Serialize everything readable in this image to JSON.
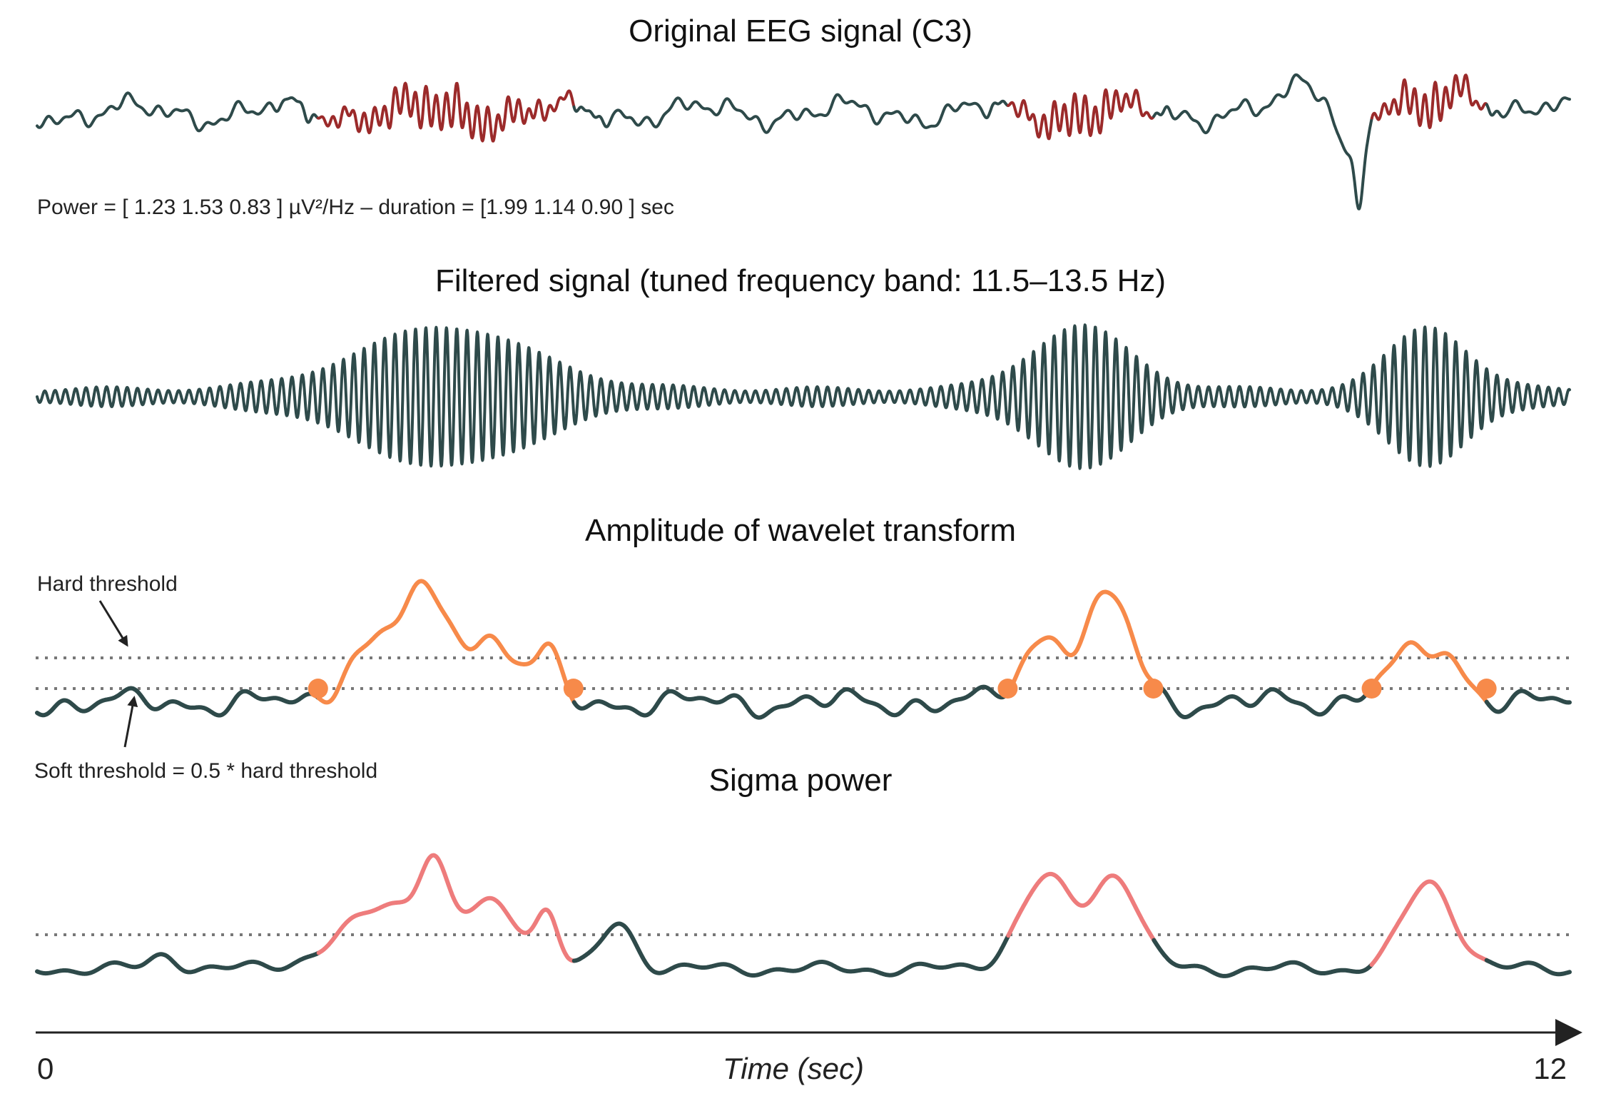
{
  "panels": {
    "eeg": {
      "title": "Original EEG signal (C3)",
      "annotation": "Power = [ 1.23 1.53 0.83 ] µV²/Hz – duration = [1.99 1.14 0.90 ] sec"
    },
    "filtered": {
      "title": "Filtered signal (tuned frequency band: 11.5–13.5 Hz)"
    },
    "wavelet": {
      "title": "Amplitude of wavelet transform",
      "hard_threshold_label": "Hard threshold",
      "soft_threshold_label": "Soft threshold = 0.5 * hard threshold"
    },
    "sigma": {
      "title": "Sigma power"
    }
  },
  "time_axis": {
    "label": "Time (sec)",
    "start": "0",
    "end": "12"
  },
  "colors": {
    "signal": "#2e4a4a",
    "eeg_highlight": "#9b2a2a",
    "wavelet_highlight": "#f78a4a",
    "sigma_highlight": "#ee7c7c",
    "threshold": "#777777",
    "axis": "#222222"
  },
  "chart_data": {
    "type": "line",
    "x_unit": "sec",
    "xlim": [
      0,
      12
    ],
    "detected_spindles": [
      {
        "start": 2.2,
        "end": 4.2,
        "duration_sec": 1.99,
        "power_uV2_per_Hz": 1.23
      },
      {
        "start": 7.6,
        "end": 8.74,
        "duration_sec": 1.14,
        "power_uV2_per_Hz": 1.53
      },
      {
        "start": 10.45,
        "end": 11.35,
        "duration_sec": 0.9,
        "power_uV2_per_Hz": 0.83
      }
    ],
    "filter_band_hz": [
      11.5,
      13.5
    ]
  }
}
